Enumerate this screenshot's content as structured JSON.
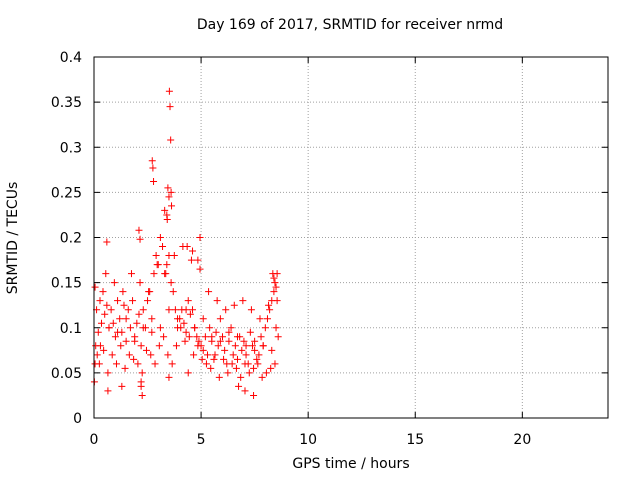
{
  "chart_data": {
    "type": "scatter",
    "title": "Day 169 of 2017, SRMTID for receiver nrmd",
    "xlabel": "GPS time / hours",
    "ylabel": "SRMTID / TECUs",
    "xlim": [
      0,
      24
    ],
    "ylim": [
      0,
      0.4
    ],
    "xticks": [
      0,
      5,
      10,
      15,
      20
    ],
    "xtick_labels": [
      "0",
      "5",
      "10",
      "15",
      "20"
    ],
    "yticks": [
      0,
      0.05,
      0.1,
      0.15,
      0.2,
      0.25,
      0.3,
      0.35,
      0.4
    ],
    "ytick_labels": [
      "0",
      "0.05",
      "0.1",
      "0.15",
      "0.2",
      "0.25",
      "0.3",
      "0.35",
      "0.4"
    ],
    "grid": true,
    "marker": "plus",
    "series": [
      {
        "name": "SRMTID",
        "color": "#ff0000",
        "x": [
          0.05,
          0.12,
          0.2,
          0.28,
          0.35,
          0.42,
          0.5,
          0.6,
          0.7,
          0.8,
          0.9,
          1.0,
          1.1,
          1.2,
          1.3,
          1.4,
          1.5,
          1.6,
          1.7,
          1.8,
          1.9,
          2.0,
          2.1,
          2.2,
          2.3,
          2.4,
          2.5,
          2.6,
          2.7,
          2.8,
          2.9,
          3.0,
          3.1,
          3.2,
          3.3,
          3.4,
          3.5,
          3.6,
          3.7,
          3.8,
          3.9,
          4.0,
          4.1,
          4.2,
          4.3,
          4.4,
          4.5,
          4.6,
          4.7,
          4.8,
          4.9,
          5.0,
          5.1,
          5.2,
          5.3,
          5.4,
          5.5,
          5.6,
          5.7,
          5.8,
          5.9,
          6.0,
          6.1,
          6.2,
          6.3,
          6.4,
          6.5,
          6.6,
          6.7,
          6.8,
          6.9,
          7.0,
          7.1,
          7.2,
          7.3,
          7.4,
          7.5,
          7.6,
          7.7,
          7.8,
          7.9,
          8.0,
          8.1,
          8.2,
          8.3,
          8.4,
          8.5,
          8.6,
          0.08,
          0.25,
          0.45,
          0.65,
          0.85,
          1.05,
          1.25,
          1.45,
          1.65,
          1.85,
          2.05,
          2.25,
          2.45,
          2.65,
          2.85,
          3.05,
          3.25,
          3.45,
          3.65,
          3.85,
          4.05,
          4.25,
          4.45,
          4.65,
          4.85,
          5.05,
          5.25,
          5.45,
          5.65,
          5.85,
          6.05,
          6.25,
          6.45,
          6.65,
          6.85,
          7.05,
          7.25,
          7.45,
          7.65,
          7.85,
          8.05,
          8.25,
          8.45,
          0.15,
          0.55,
          0.95,
          1.35,
          1.75,
          2.15,
          2.55,
          2.95,
          3.35,
          3.75,
          4.15,
          4.55,
          4.95,
          5.35,
          5.75,
          6.15,
          6.55,
          6.95,
          7.35,
          7.75,
          8.15,
          8.55,
          0.3,
          0.7,
          1.1,
          1.5,
          1.9,
          2.3,
          2.7,
          3.1,
          3.5,
          3.9,
          4.3,
          4.7,
          5.1,
          5.5,
          5.9,
          6.3,
          6.7,
          7.1,
          7.5,
          7.9,
          8.3,
          3.52,
          3.55,
          3.58,
          2.72,
          2.75,
          2.78,
          3.45,
          3.5,
          3.6,
          3.62,
          3.3,
          3.4,
          3.42,
          2.1,
          2.15,
          0.6,
          4.35,
          4.6,
          4.85,
          4.95,
          8.35,
          8.4,
          8.45,
          8.5,
          8.55,
          2.2,
          2.25,
          3.5,
          6.75,
          7.05,
          7.45,
          0.02,
          0.05,
          0.65,
          1.3,
          2.2,
          4.4
        ],
        "y": [
          0.145,
          0.12,
          0.095,
          0.13,
          0.105,
          0.14,
          0.115,
          0.125,
          0.1,
          0.12,
          0.105,
          0.09,
          0.13,
          0.11,
          0.095,
          0.125,
          0.085,
          0.12,
          0.1,
          0.13,
          0.09,
          0.105,
          0.115,
          0.08,
          0.12,
          0.1,
          0.13,
          0.14,
          0.11,
          0.16,
          0.18,
          0.17,
          0.2,
          0.19,
          0.16,
          0.17,
          0.18,
          0.15,
          0.14,
          0.12,
          0.1,
          0.11,
          0.12,
          0.105,
          0.095,
          0.13,
          0.115,
          0.12,
          0.1,
          0.09,
          0.085,
          0.08,
          0.075,
          0.09,
          0.07,
          0.1,
          0.085,
          0.065,
          0.095,
          0.08,
          0.11,
          0.09,
          0.075,
          0.06,
          0.085,
          0.1,
          0.07,
          0.08,
          0.065,
          0.09,
          0.075,
          0.085,
          0.07,
          0.06,
          0.095,
          0.08,
          0.075,
          0.065,
          0.07,
          0.09,
          0.08,
          0.1,
          0.11,
          0.12,
          0.13,
          0.14,
          0.1,
          0.09,
          0.08,
          0.06,
          0.075,
          0.05,
          0.07,
          0.06,
          0.08,
          0.055,
          0.07,
          0.065,
          0.06,
          0.05,
          0.075,
          0.07,
          0.06,
          0.08,
          0.09,
          0.07,
          0.06,
          0.08,
          0.1,
          0.085,
          0.09,
          0.07,
          0.08,
          0.065,
          0.06,
          0.055,
          0.07,
          0.045,
          0.065,
          0.05,
          0.06,
          0.055,
          0.045,
          0.06,
          0.05,
          0.055,
          0.06,
          0.045,
          0.05,
          0.055,
          0.06,
          0.07,
          0.16,
          0.15,
          0.14,
          0.16,
          0.15,
          0.14,
          0.17,
          0.16,
          0.18,
          0.19,
          0.175,
          0.165,
          0.14,
          0.13,
          0.12,
          0.125,
          0.13,
          0.12,
          0.11,
          0.125,
          0.13,
          0.08,
          0.1,
          0.095,
          0.11,
          0.085,
          0.1,
          0.095,
          0.1,
          0.12,
          0.11,
          0.12,
          0.1,
          0.11,
          0.09,
          0.085,
          0.095,
          0.09,
          0.08,
          0.085,
          0.08,
          0.075,
          0.362,
          0.345,
          0.308,
          0.285,
          0.277,
          0.262,
          0.255,
          0.245,
          0.25,
          0.235,
          0.23,
          0.225,
          0.22,
          0.208,
          0.198,
          0.195,
          0.19,
          0.185,
          0.175,
          0.2,
          0.16,
          0.155,
          0.15,
          0.145,
          0.16,
          0.035,
          0.025,
          0.045,
          0.035,
          0.03,
          0.025,
          0.04,
          0.06,
          0.03,
          0.035,
          0.04,
          0.05
        ]
      }
    ]
  }
}
